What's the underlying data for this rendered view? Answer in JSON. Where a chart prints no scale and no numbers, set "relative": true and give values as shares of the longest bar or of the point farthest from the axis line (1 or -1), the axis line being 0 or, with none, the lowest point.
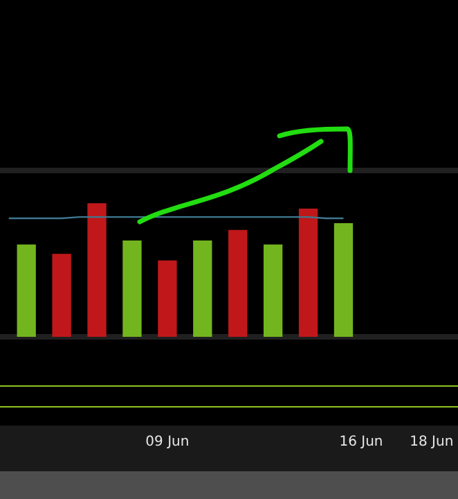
{
  "chart_data": {
    "type": "bar",
    "relative": true,
    "categories": [
      null,
      null,
      null,
      null,
      null,
      null,
      null,
      null,
      null,
      "09 Jun",
      null,
      null,
      null,
      null,
      null,
      null,
      null,
      null,
      null,
      null,
      "16 Jun",
      null,
      null,
      null,
      "18 Jun",
      null
    ],
    "grid": false,
    "legend": false,
    "series": [
      {
        "values": [
          null,
          0.69,
          null,
          0.62,
          null,
          1,
          null,
          0.72,
          null,
          0.57,
          null,
          0.72,
          null,
          0.8,
          null,
          0.69,
          null,
          0.96,
          null,
          0.85,
          null,
          null,
          null,
          null,
          null,
          null
        ],
        "colors": [
          null,
          "#72b51f",
          null,
          "#c0181a",
          null,
          "#c0181a",
          null,
          "#72b51f",
          null,
          "#c0181a",
          null,
          "#72b51f",
          null,
          "#c0181a",
          null,
          "#72b51f",
          null,
          "#c0181a",
          null,
          "#72b51f",
          null,
          null,
          null,
          null,
          null,
          null
        ]
      },
      {
        "type": "line",
        "values": [
          0.89,
          0.89,
          0.89,
          0.89,
          0.9,
          0.9,
          0.9,
          0.9,
          0.9,
          0.9,
          0.9,
          0.9,
          0.9,
          0.9,
          0.9,
          0.9,
          0.9,
          0.9,
          0.89,
          0.89,
          null,
          null,
          null,
          null,
          null,
          null
        ],
        "color": "#3f7890"
      }
    ]
  }
}
